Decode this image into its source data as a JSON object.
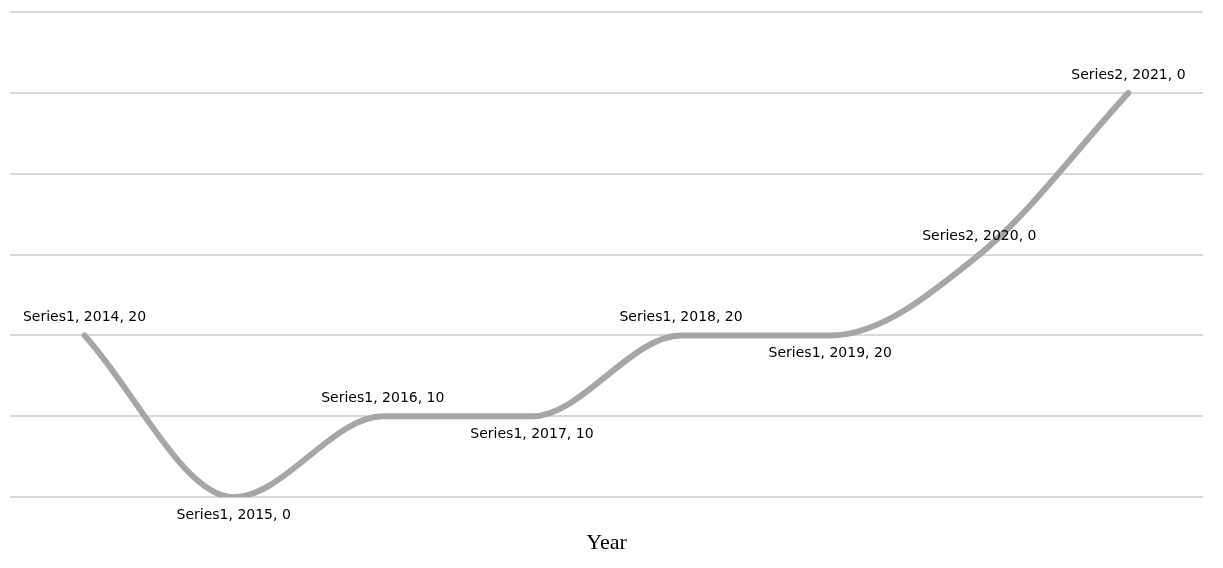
{
  "chart_data": {
    "type": "line",
    "xlabel": "Year",
    "categories": [
      null,
      null,
      null,
      null,
      null,
      null,
      null,
      null
    ],
    "series": [
      {
        "color": "#a6a6a6",
        "values": [
          20,
          0,
          10,
          10,
          20,
          20,
          30,
          50
        ],
        "value_labels": [
          "Series1, 2014, 20",
          "Series1, 2015, 0",
          "Series1, 2016, 10",
          "Series1, 2017, 10",
          "Series1, 2018, 20",
          "Series1, 2019, 20",
          "Series2, 2020, 0",
          "Series2, 2021, 0"
        ]
      }
    ],
    "ylim": [
      0,
      60
    ],
    "yticks": [
      {
        "value": 0,
        "label": null
      },
      {
        "value": 10,
        "label": null
      },
      {
        "value": 20,
        "label": null
      },
      {
        "value": 30,
        "label": null
      },
      {
        "value": 40,
        "label": null
      },
      {
        "value": 50,
        "label": null
      },
      {
        "value": 60,
        "label": null
      }
    ],
    "grid": "y",
    "legend": false,
    "marker": "none",
    "line_style": "solid"
  }
}
